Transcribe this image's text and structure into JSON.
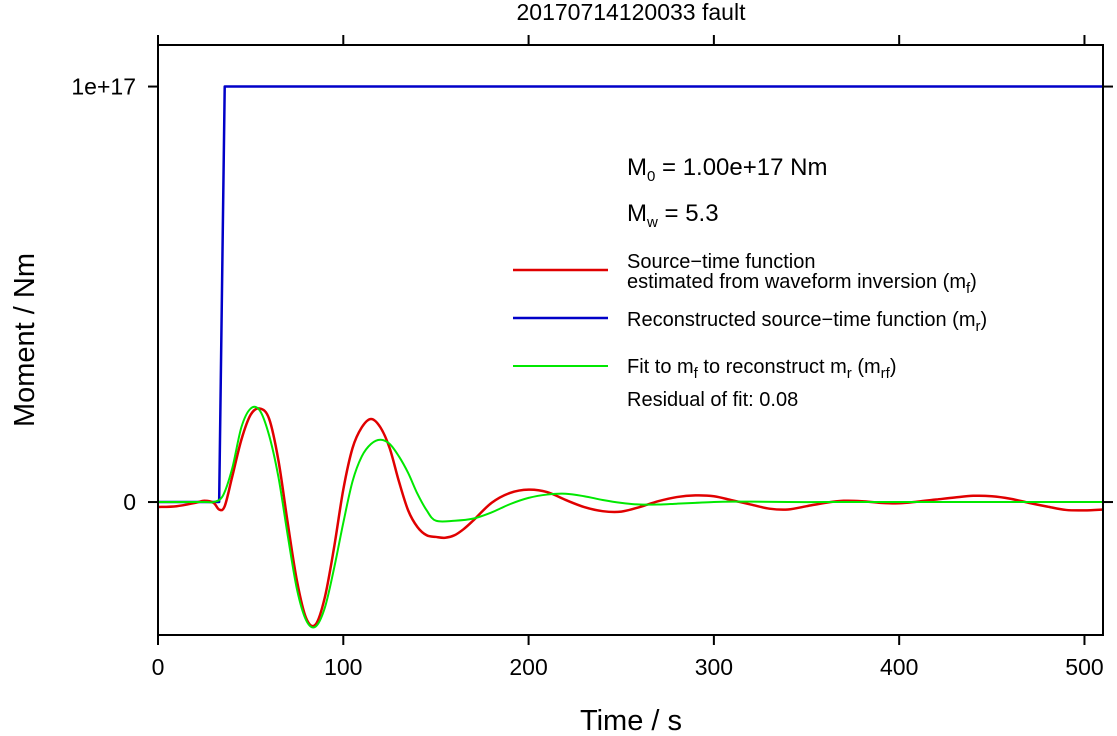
{
  "chart_data": {
    "type": "line",
    "title": "20170714120033 fault",
    "xlabel": "Time / s",
    "ylabel": "Moment / Nm",
    "xlim": [
      0,
      510
    ],
    "ylim": [
      -3.2e+16,
      1.1e+17
    ],
    "x_ticks": [
      0,
      100,
      200,
      300,
      400,
      500
    ],
    "x_tick_labels": [
      "0",
      "100",
      "200",
      "300",
      "400",
      "500"
    ],
    "y_ticks": [
      0,
      1e+17
    ],
    "y_tick_labels": [
      "0",
      "1e+17"
    ],
    "grid": false,
    "annotations": {
      "m0": {
        "prefix": "M",
        "subscript": "0",
        "text": " = 1.00e+17 Nm"
      },
      "mw": {
        "prefix": "M",
        "subscript": "w",
        "text": " = 5.3"
      }
    },
    "legend": {
      "placement": "right",
      "entries": [
        {
          "series": 0,
          "lines": [
            "Source−time function",
            "estimated from waveform inversion (m",
            "f",
            ")"
          ]
        },
        {
          "series": 1,
          "lines": [
            "Reconstructed source−time function (m",
            "r",
            ")"
          ]
        },
        {
          "series": 2,
          "lines": [
            "Fit to m",
            "f",
            " to reconstruct m",
            "r",
            " (m",
            "rf",
            ")"
          ]
        }
      ],
      "residual": "Residual of fit: 0.08"
    },
    "series": [
      {
        "color": "#e00000",
        "x": [
          0,
          10,
          20,
          25,
          30,
          33,
          36,
          40,
          45,
          50,
          55,
          60,
          65,
          70,
          75,
          80,
          85,
          90,
          95,
          100,
          105,
          110,
          115,
          120,
          125,
          130,
          135,
          140,
          145,
          150,
          155,
          160,
          165,
          170,
          180,
          190,
          200,
          210,
          220,
          230,
          240,
          250,
          260,
          270,
          280,
          290,
          300,
          310,
          320,
          330,
          340,
          350,
          360,
          370,
          380,
          390,
          400,
          410,
          420,
          430,
          440,
          450,
          460,
          470,
          480,
          490,
          500,
          510
        ],
        "y": [
          -1200000000000000.0,
          -1000000000000000.0,
          -200000000000000.0,
          300000000000000.0,
          -200000000000000.0,
          -1800000000000000.0,
          -1000000000000000.0,
          6000000000000000.0,
          1.5e+16,
          2.1e+16,
          2.25e+16,
          2e+16,
          1e+16,
          -5000000000000000.0,
          -1.9e+16,
          -2.8e+16,
          -2.95e+16,
          -2.3e+16,
          -1.1e+16,
          3000000000000000.0,
          1.3e+16,
          1.8e+16,
          2e+16,
          1.8e+16,
          1.3e+16,
          5000000000000000.0,
          -2000000000000000.0,
          -6000000000000000.0,
          -8000000000000000.0,
          -8400000000000000.0,
          -8600000000000000.0,
          -8000000000000000.0,
          -6500000000000000.0,
          -4500000000000000.0,
          -200000000000000.0,
          2200000000000000.0,
          3000000000000000.0,
          2400000000000000.0,
          500000000000000.0,
          -1200000000000000.0,
          -2200000000000000.0,
          -2300000000000000.0,
          -1200000000000000.0,
          200000000000000.0,
          1200000000000000.0,
          1600000000000000.0,
          1400000000000000.0,
          400000000000000.0,
          -600000000000000.0,
          -1600000000000000.0,
          -1800000000000000.0,
          -1000000000000000.0,
          -200000000000000.0,
          300000000000000.0,
          200000000000000.0,
          -200000000000000.0,
          -300000000000000.0,
          100000000000000.0,
          600000000000000.0,
          1100000000000000.0,
          1500000000000000.0,
          1400000000000000.0,
          800000000000000.0,
          -200000000000000.0,
          -1100000000000000.0,
          -1900000000000000.0,
          -2000000000000000.0,
          -1800000000000000.0
        ]
      },
      {
        "color": "#0000c8",
        "x": [
          0,
          33,
          36,
          510
        ],
        "y": [
          0,
          0,
          1e+17,
          1e+17
        ]
      },
      {
        "color": "#00e800",
        "x": [
          0,
          25,
          30,
          35,
          40,
          45,
          50,
          55,
          60,
          65,
          70,
          75,
          80,
          85,
          90,
          95,
          100,
          105,
          110,
          115,
          120,
          125,
          130,
          135,
          140,
          145,
          150,
          160,
          170,
          180,
          190,
          200,
          210,
          220,
          230,
          240,
          250,
          260,
          270,
          280,
          290,
          300,
          310,
          320,
          340,
          360,
          380,
          400,
          420,
          440,
          460,
          480,
          500,
          510
        ],
        "y": [
          0,
          0,
          0,
          1500000000000000.0,
          8000000000000000.0,
          1.8e+16,
          2.25e+16,
          2.2e+16,
          1.6e+16,
          6000000000000000.0,
          -8000000000000000.0,
          -2.1e+16,
          -2.85e+16,
          -3e+16,
          -2.55e+16,
          -1.6e+16,
          -5000000000000000.0,
          5000000000000000.0,
          1.1e+16,
          1.4e+16,
          1.5e+16,
          1.4e+16,
          1.1e+16,
          7000000000000000.0,
          2000000000000000.0,
          -2000000000000000.0,
          -4500000000000000.0,
          -4500000000000000.0,
          -4000000000000000.0,
          -2500000000000000.0,
          -500000000000000.0,
          1000000000000000.0,
          1800000000000000.0,
          2000000000000000.0,
          1400000000000000.0,
          500000000000000.0,
          -200000000000000.0,
          -600000000000000.0,
          -600000000000000.0,
          -400000000000000.0,
          -200000000000000.0,
          0,
          100000000000000.0,
          100000000000000.0,
          0,
          0,
          0,
          0,
          0,
          0,
          0,
          0,
          0,
          0
        ]
      }
    ]
  }
}
